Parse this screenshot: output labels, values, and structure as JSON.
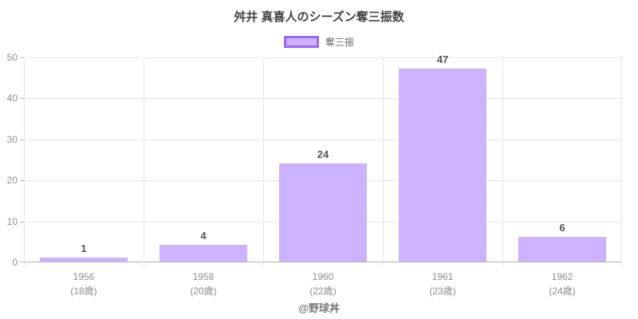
{
  "title": "舛井 真喜人のシーズン奪三振数",
  "legend": {
    "label": "奪三振"
  },
  "attribution": "@野球丼",
  "colors": {
    "bar_fill": "#ccb2ff",
    "bar_border": "#9966ff",
    "grid": "#e6e6e6",
    "axis_line": "#b3b3b3",
    "axis_tick": "#b3b3b3",
    "tick_text": "#8e8e8e",
    "value_label_text": "#555555",
    "title_text": "#444444",
    "legend_text": "#666666",
    "attribution_text": "#777777"
  },
  "chart_data": {
    "type": "bar",
    "title": "舛井 真喜人のシーズン奪三振数",
    "categories": [
      "1956",
      "1958",
      "1960",
      "1961",
      "1962"
    ],
    "category_sublabels": [
      "(18歳)",
      "(20歳)",
      "(22歳)",
      "(23歳)",
      "(24歳)"
    ],
    "series": [
      {
        "name": "奪三振",
        "values": [
          1,
          4,
          24,
          47,
          6
        ]
      }
    ],
    "xlabel": "",
    "ylabel": "",
    "ylim": [
      0,
      50
    ],
    "yticks": [
      0,
      10,
      20,
      30,
      40,
      50
    ],
    "grid": true,
    "legend_position": "top",
    "value_labels": true
  }
}
